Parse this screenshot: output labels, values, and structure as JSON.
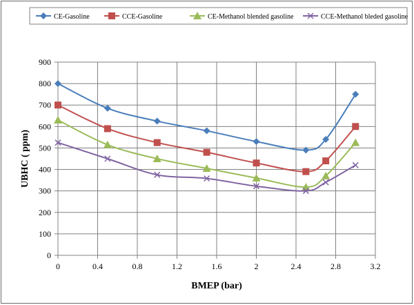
{
  "chart_data": {
    "type": "line",
    "title": "",
    "xlabel": "BMEP (bar)",
    "ylabel": "UBHC ( ppm)",
    "xlim": [
      0,
      3.2
    ],
    "ylim": [
      0,
      900
    ],
    "x_ticks": [
      0,
      0.4,
      0.8,
      1.2,
      1.6,
      2,
      2.4,
      2.8,
      3.2
    ],
    "x_tick_labels": [
      "0",
      "0.4",
      "0.8",
      "1.2",
      "1.6",
      "2",
      "2.4",
      "2.8",
      "3.2"
    ],
    "y_ticks": [
      0,
      100,
      200,
      300,
      400,
      500,
      600,
      700,
      800,
      900
    ],
    "y_tick_labels": [
      "0",
      "100",
      "200",
      "300",
      "400",
      "500",
      "600",
      "700",
      "800",
      "900"
    ],
    "grid": true,
    "legend_position": "top",
    "series": [
      {
        "name": "CE-Gasoline",
        "color": "#4a7ebb",
        "marker": "diamond",
        "x": [
          0,
          0.5,
          1,
          1.5,
          2,
          2.5,
          2.7,
          3
        ],
        "values": [
          800,
          685,
          625,
          580,
          530,
          490,
          540,
          750
        ]
      },
      {
        "name": "CCE-Gasoline",
        "color": "#c0504d",
        "marker": "square",
        "x": [
          0,
          0.5,
          1,
          1.5,
          2,
          2.5,
          2.7,
          3
        ],
        "values": [
          700,
          590,
          525,
          480,
          430,
          390,
          440,
          600
        ]
      },
      {
        "name": "CE-Methanol blended gasoline",
        "color": "#9bbb59",
        "marker": "triangle",
        "x": [
          0,
          0.5,
          1,
          1.5,
          2,
          2.5,
          2.7,
          3
        ],
        "values": [
          630,
          515,
          450,
          405,
          360,
          318,
          370,
          525
        ]
      },
      {
        "name": "CCE-Methanol bleded gasoline",
        "color": "#8064a2",
        "marker": "x",
        "x": [
          0,
          0.5,
          1,
          1.5,
          2,
          2.5,
          2.7,
          3
        ],
        "values": [
          525,
          450,
          375,
          358,
          322,
          300,
          340,
          420
        ]
      }
    ]
  }
}
